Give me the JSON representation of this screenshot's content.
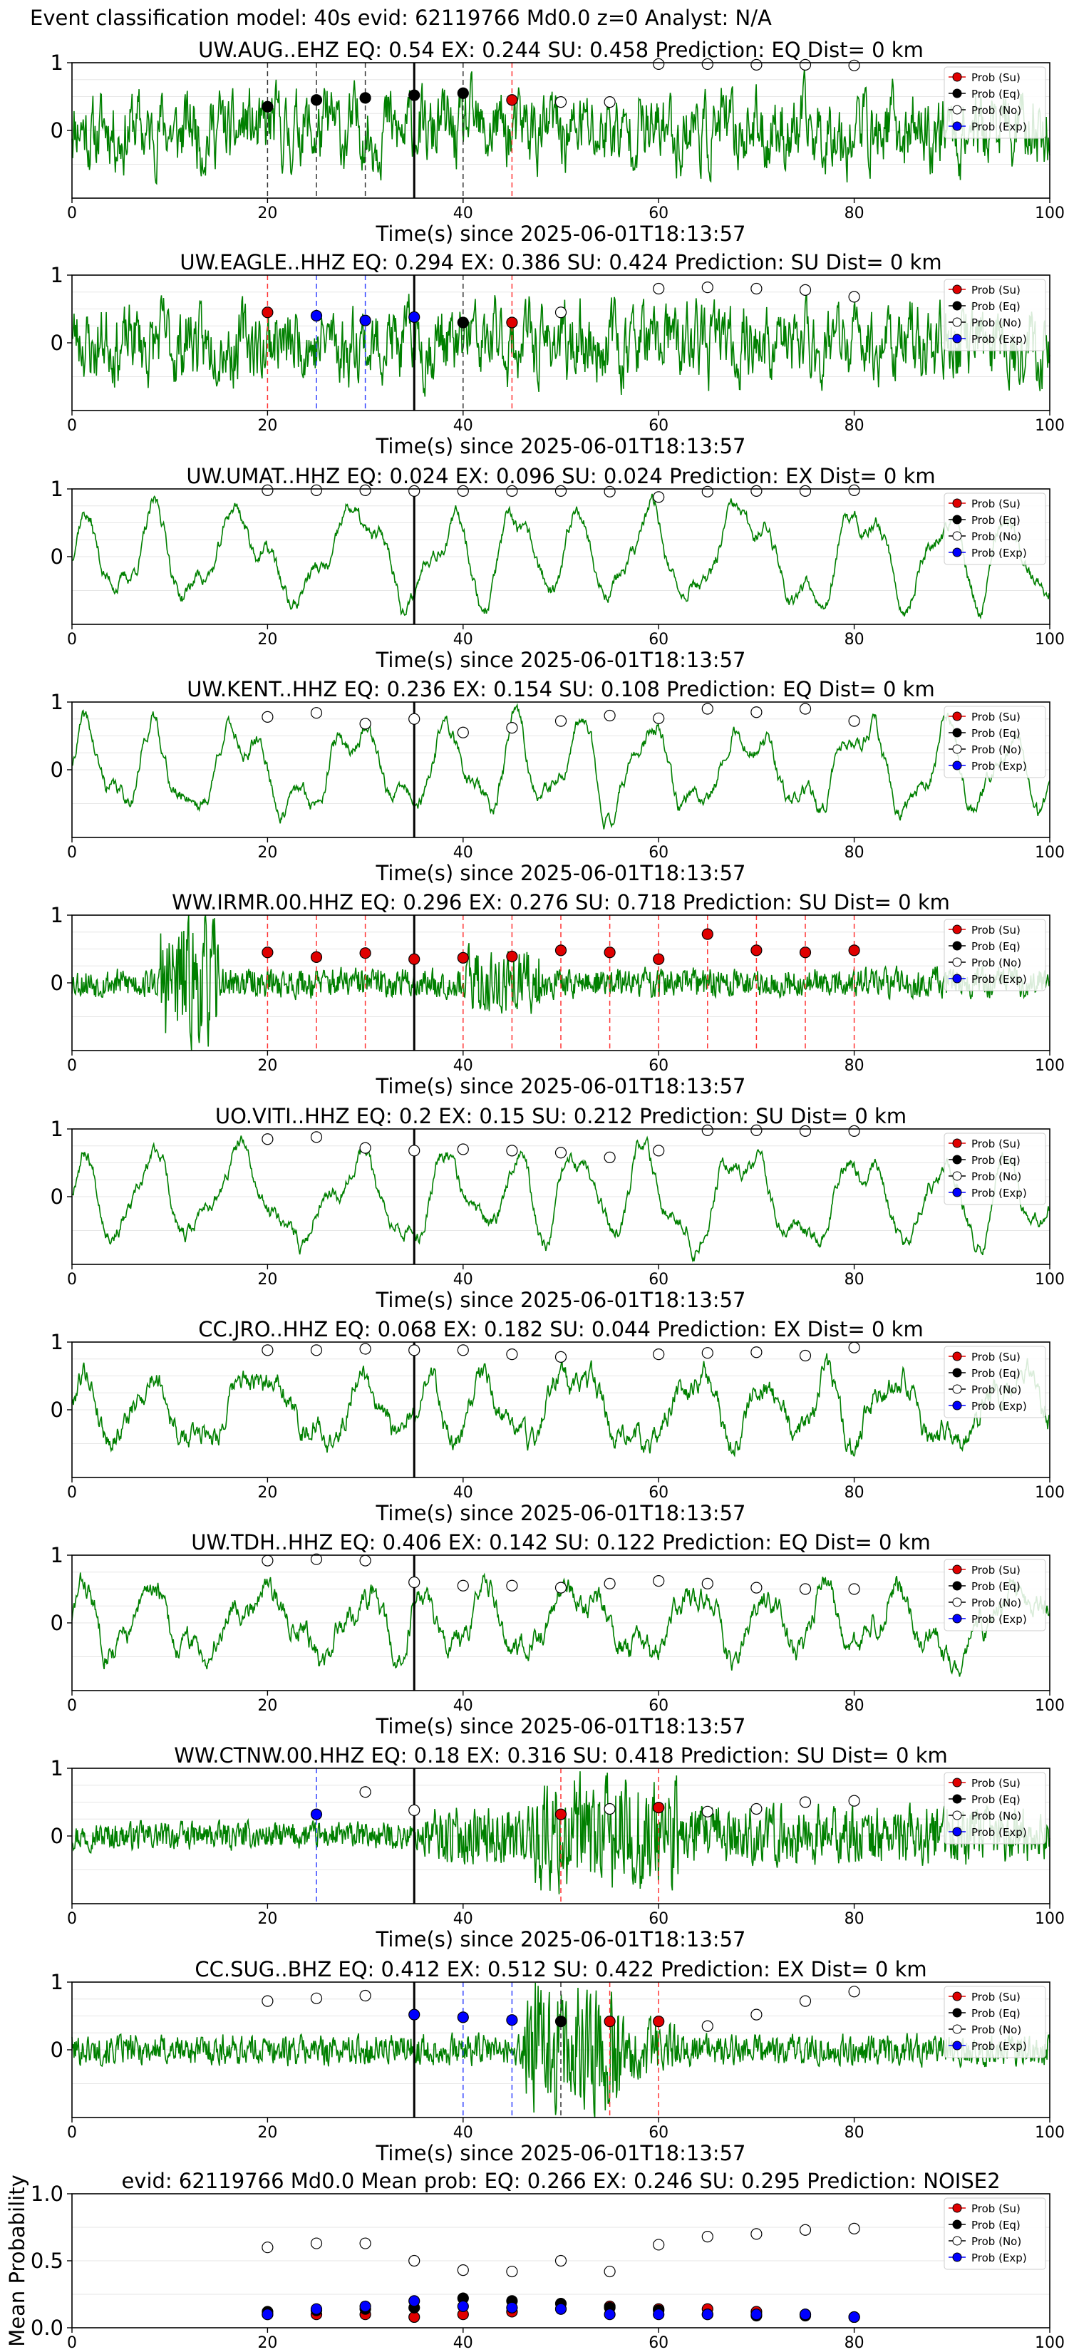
{
  "figure_title": "Event classification model: 40s evid: 62119766 Md0.0 z=0 Analyst: N/A",
  "colors": {
    "waveform": "#008000",
    "su": "#e00000",
    "eq": "#000000",
    "no": "#ffffff",
    "exp": "#0000ff",
    "pick": "#000000"
  },
  "legend_labels": [
    "Prob (Su)",
    "Prob (Eq)",
    "Prob (No)",
    "Prob (Exp)"
  ],
  "chart_data": [
    {
      "type": "line",
      "title": "UW.AUG..EHZ    EQ: 0.54   EX: 0.244   SU: 0.458    Prediction: EQ    Dist= 0 km",
      "xlabel": "Time(s) since 2025-06-01T18:13:57",
      "xlim": [
        0,
        100
      ],
      "ylim": [
        -1,
        1
      ],
      "xticks": [
        0,
        20,
        40,
        60,
        80,
        100
      ],
      "yticks": [
        1,
        0
      ],
      "legend": "right",
      "grid": true,
      "pick_time": 35,
      "seed": 11,
      "style": "noisy",
      "windows": [
        {
          "t": 20,
          "class": "eq",
          "p": 0.35
        },
        {
          "t": 25,
          "class": "eq",
          "p": 0.45
        },
        {
          "t": 30,
          "class": "eq",
          "p": 0.48
        },
        {
          "t": 35,
          "class": "eq",
          "p": 0.52
        },
        {
          "t": 40,
          "class": "eq",
          "p": 0.55
        },
        {
          "t": 45,
          "class": "su",
          "p": 0.45
        },
        {
          "t": 50,
          "class": "no",
          "p": 0.42
        },
        {
          "t": 55,
          "class": "no",
          "p": 0.42
        },
        {
          "t": 60,
          "class": "no",
          "p": 0.98
        },
        {
          "t": 65,
          "class": "no",
          "p": 0.98
        },
        {
          "t": 70,
          "class": "no",
          "p": 0.97
        },
        {
          "t": 75,
          "class": "no",
          "p": 0.97
        },
        {
          "t": 80,
          "class": "no",
          "p": 0.96
        }
      ]
    },
    {
      "type": "line",
      "title": "UW.EAGLE..HHZ   EQ: 0.294   EX: 0.386   SU: 0.424    Prediction: SU    Dist= 0 km",
      "xlabel": "Time(s) since 2025-06-01T18:13:57",
      "xlim": [
        0,
        100
      ],
      "ylim": [
        -1,
        1
      ],
      "xticks": [
        0,
        20,
        40,
        60,
        80,
        100
      ],
      "yticks": [
        1,
        0
      ],
      "legend": "right",
      "grid": true,
      "pick_time": 35,
      "seed": 23,
      "style": "noisy",
      "windows": [
        {
          "t": 20,
          "class": "su",
          "p": 0.45
        },
        {
          "t": 25,
          "class": "exp",
          "p": 0.4
        },
        {
          "t": 30,
          "class": "exp",
          "p": 0.33
        },
        {
          "t": 35,
          "class": "exp",
          "p": 0.38
        },
        {
          "t": 40,
          "class": "eq",
          "p": 0.3
        },
        {
          "t": 45,
          "class": "su",
          "p": 0.3
        },
        {
          "t": 50,
          "class": "no",
          "p": 0.45
        },
        {
          "t": 60,
          "class": "no",
          "p": 0.8
        },
        {
          "t": 65,
          "class": "no",
          "p": 0.82
        },
        {
          "t": 70,
          "class": "no",
          "p": 0.8
        },
        {
          "t": 75,
          "class": "no",
          "p": 0.78
        },
        {
          "t": 80,
          "class": "no",
          "p": 0.68
        }
      ]
    },
    {
      "type": "line",
      "title": "UW.UMAT..HHZ   EQ: 0.024   EX: 0.096   SU: 0.024    Prediction: EX     Dist= 0 km",
      "xlabel": "Time(s) since 2025-06-01T18:13:57",
      "xlim": [
        0,
        100
      ],
      "ylim": [
        -1,
        1
      ],
      "xticks": [
        0,
        20,
        40,
        60,
        80,
        100
      ],
      "yticks": [
        1,
        0
      ],
      "legend": "right",
      "grid": true,
      "pick_time": 35,
      "seed": 37,
      "style": "wave",
      "windows": [
        {
          "t": 20,
          "class": "no",
          "p": 0.98
        },
        {
          "t": 25,
          "class": "no",
          "p": 0.98
        },
        {
          "t": 30,
          "class": "no",
          "p": 0.98
        },
        {
          "t": 35,
          "class": "no",
          "p": 0.97
        },
        {
          "t": 40,
          "class": "no",
          "p": 0.97
        },
        {
          "t": 45,
          "class": "no",
          "p": 0.97
        },
        {
          "t": 50,
          "class": "no",
          "p": 0.97
        },
        {
          "t": 55,
          "class": "no",
          "p": 0.96
        },
        {
          "t": 60,
          "class": "no",
          "p": 0.88
        },
        {
          "t": 65,
          "class": "no",
          "p": 0.96
        },
        {
          "t": 70,
          "class": "no",
          "p": 0.97
        },
        {
          "t": 75,
          "class": "no",
          "p": 0.97
        },
        {
          "t": 80,
          "class": "no",
          "p": 0.98
        }
      ]
    },
    {
      "type": "line",
      "title": "UW.KENT..HHZ   EQ: 0.236   EX: 0.154   SU: 0.108    Prediction: EQ    Dist= 0 km",
      "xlabel": "Time(s) since 2025-06-01T18:13:57",
      "xlim": [
        0,
        100
      ],
      "ylim": [
        -1,
        1
      ],
      "xticks": [
        0,
        20,
        40,
        60,
        80,
        100
      ],
      "yticks": [
        1,
        0
      ],
      "legend": "right",
      "grid": true,
      "pick_time": 35,
      "seed": 41,
      "style": "wave",
      "windows": [
        {
          "t": 20,
          "class": "no",
          "p": 0.78
        },
        {
          "t": 25,
          "class": "no",
          "p": 0.84
        },
        {
          "t": 30,
          "class": "no",
          "p": 0.68
        },
        {
          "t": 35,
          "class": "no",
          "p": 0.75
        },
        {
          "t": 40,
          "class": "no",
          "p": 0.55
        },
        {
          "t": 45,
          "class": "no",
          "p": 0.62
        },
        {
          "t": 50,
          "class": "no",
          "p": 0.72
        },
        {
          "t": 55,
          "class": "no",
          "p": 0.8
        },
        {
          "t": 60,
          "class": "no",
          "p": 0.76
        },
        {
          "t": 65,
          "class": "no",
          "p": 0.9
        },
        {
          "t": 70,
          "class": "no",
          "p": 0.85
        },
        {
          "t": 75,
          "class": "no",
          "p": 0.9
        },
        {
          "t": 80,
          "class": "no",
          "p": 0.72
        }
      ]
    },
    {
      "type": "line",
      "title": "WW.IRMR.00.HHZ   EQ: 0.296   EX: 0.276   SU: 0.718    Prediction: SU    Dist= 0 km",
      "xlabel": "Time(s) since 2025-06-01T18:13:57",
      "xlim": [
        0,
        100
      ],
      "ylim": [
        -1,
        1
      ],
      "xticks": [
        0,
        20,
        40,
        60,
        80,
        100
      ],
      "yticks": [
        1,
        0
      ],
      "legend": "right",
      "grid": true,
      "pick_time": 35,
      "seed": 53,
      "style": "quiet_burst",
      "windows": [
        {
          "t": 20,
          "class": "su",
          "p": 0.45
        },
        {
          "t": 25,
          "class": "su",
          "p": 0.38
        },
        {
          "t": 30,
          "class": "su",
          "p": 0.44
        },
        {
          "t": 35,
          "class": "su",
          "p": 0.35
        },
        {
          "t": 40,
          "class": "su",
          "p": 0.37
        },
        {
          "t": 45,
          "class": "su",
          "p": 0.39
        },
        {
          "t": 50,
          "class": "su",
          "p": 0.48
        },
        {
          "t": 55,
          "class": "su",
          "p": 0.45
        },
        {
          "t": 60,
          "class": "su",
          "p": 0.35
        },
        {
          "t": 65,
          "class": "su",
          "p": 0.72
        },
        {
          "t": 70,
          "class": "su",
          "p": 0.48
        },
        {
          "t": 75,
          "class": "su",
          "p": 0.45
        },
        {
          "t": 80,
          "class": "su",
          "p": 0.48
        }
      ]
    },
    {
      "type": "line",
      "title": "UO.VITI..HHZ   EQ: 0.2   EX: 0.15   SU: 0.212    Prediction: SU    Dist= 0 km",
      "xlabel": "Time(s) since 2025-06-01T18:13:57",
      "xlim": [
        0,
        100
      ],
      "ylim": [
        -1,
        1
      ],
      "xticks": [
        0,
        20,
        40,
        60,
        80,
        100
      ],
      "yticks": [
        1,
        0
      ],
      "legend": "right",
      "grid": true,
      "pick_time": 35,
      "seed": 67,
      "style": "wave",
      "windows": [
        {
          "t": 20,
          "class": "no",
          "p": 0.85
        },
        {
          "t": 25,
          "class": "no",
          "p": 0.88
        },
        {
          "t": 30,
          "class": "no",
          "p": 0.72
        },
        {
          "t": 35,
          "class": "no",
          "p": 0.68
        },
        {
          "t": 40,
          "class": "no",
          "p": 0.7
        },
        {
          "t": 45,
          "class": "no",
          "p": 0.68
        },
        {
          "t": 50,
          "class": "no",
          "p": 0.65
        },
        {
          "t": 55,
          "class": "no",
          "p": 0.58
        },
        {
          "t": 60,
          "class": "no",
          "p": 0.68
        },
        {
          "t": 65,
          "class": "no",
          "p": 0.98
        },
        {
          "t": 70,
          "class": "no",
          "p": 0.98
        },
        {
          "t": 75,
          "class": "no",
          "p": 0.97
        },
        {
          "t": 80,
          "class": "no",
          "p": 0.97
        }
      ]
    },
    {
      "type": "line",
      "title": "CC.JRO..HHZ   EQ: 0.068   EX: 0.182   SU: 0.044    Prediction: EX    Dist= 0 km",
      "xlabel": "Time(s) since 2025-06-01T18:13:57",
      "xlim": [
        0,
        100
      ],
      "ylim": [
        -1,
        1
      ],
      "xticks": [
        0,
        20,
        40,
        60,
        80,
        100
      ],
      "yticks": [
        1,
        0
      ],
      "legend": "right",
      "grid": true,
      "pick_time": 35,
      "seed": 79,
      "style": "wave_noisy",
      "windows": [
        {
          "t": 20,
          "class": "no",
          "p": 0.88
        },
        {
          "t": 25,
          "class": "no",
          "p": 0.88
        },
        {
          "t": 30,
          "class": "no",
          "p": 0.9
        },
        {
          "t": 35,
          "class": "no",
          "p": 0.88
        },
        {
          "t": 40,
          "class": "no",
          "p": 0.88
        },
        {
          "t": 45,
          "class": "no",
          "p": 0.82
        },
        {
          "t": 50,
          "class": "no",
          "p": 0.78
        },
        {
          "t": 60,
          "class": "no",
          "p": 0.82
        },
        {
          "t": 65,
          "class": "no",
          "p": 0.84
        },
        {
          "t": 70,
          "class": "no",
          "p": 0.85
        },
        {
          "t": 75,
          "class": "no",
          "p": 0.8
        },
        {
          "t": 80,
          "class": "no",
          "p": 0.92
        }
      ]
    },
    {
      "type": "line",
      "title": "UW.TDH..HHZ   EQ: 0.406   EX: 0.142   SU: 0.122    Prediction: EQ    Dist= 0 km",
      "xlabel": "Time(s) since 2025-06-01T18:13:57",
      "xlim": [
        0,
        100
      ],
      "ylim": [
        -1,
        1
      ],
      "xticks": [
        0,
        20,
        40,
        60,
        80,
        100
      ],
      "yticks": [
        1,
        0
      ],
      "legend": "right",
      "grid": true,
      "pick_time": 35,
      "seed": 83,
      "style": "wave_noisy",
      "windows": [
        {
          "t": 20,
          "class": "no",
          "p": 0.92
        },
        {
          "t": 25,
          "class": "no",
          "p": 0.94
        },
        {
          "t": 30,
          "class": "no",
          "p": 0.92
        },
        {
          "t": 35,
          "class": "no",
          "p": 0.6
        },
        {
          "t": 40,
          "class": "no",
          "p": 0.55
        },
        {
          "t": 45,
          "class": "no",
          "p": 0.55
        },
        {
          "t": 50,
          "class": "no",
          "p": 0.52
        },
        {
          "t": 55,
          "class": "no",
          "p": 0.58
        },
        {
          "t": 60,
          "class": "no",
          "p": 0.62
        },
        {
          "t": 65,
          "class": "no",
          "p": 0.58
        },
        {
          "t": 70,
          "class": "no",
          "p": 0.52
        },
        {
          "t": 75,
          "class": "no",
          "p": 0.5
        },
        {
          "t": 80,
          "class": "no",
          "p": 0.5
        }
      ]
    },
    {
      "type": "line",
      "title": "WW.CTNW.00.HHZ   EQ: 0.18   EX: 0.316   SU: 0.418    Prediction: SU    Dist= 0 km",
      "xlabel": "Time(s) since 2025-06-01T18:13:57",
      "xlim": [
        0,
        100
      ],
      "ylim": [
        -1,
        1
      ],
      "xticks": [
        0,
        20,
        40,
        60,
        80,
        100
      ],
      "yticks": [
        1,
        0
      ],
      "legend": "right",
      "grid": true,
      "pick_time": 35,
      "seed": 97,
      "style": "quiet_burst_late",
      "windows": [
        {
          "t": 25,
          "class": "exp",
          "p": 0.32
        },
        {
          "t": 30,
          "class": "no",
          "p": 0.65
        },
        {
          "t": 35,
          "class": "no",
          "p": 0.38
        },
        {
          "t": 50,
          "class": "su",
          "p": 0.32
        },
        {
          "t": 55,
          "class": "no",
          "p": 0.4
        },
        {
          "t": 60,
          "class": "su",
          "p": 0.42
        },
        {
          "t": 65,
          "class": "no",
          "p": 0.36
        },
        {
          "t": 70,
          "class": "no",
          "p": 0.4
        },
        {
          "t": 75,
          "class": "no",
          "p": 0.5
        },
        {
          "t": 80,
          "class": "no",
          "p": 0.52
        }
      ]
    },
    {
      "type": "line",
      "title": "CC.SUG..BHZ   EQ: 0.412   EX: 0.512   SU: 0.422    Prediction: EX    Dist= 0 km",
      "xlabel": "Time(s) since 2025-06-01T18:13:57",
      "xlim": [
        0,
        100
      ],
      "ylim": [
        -1,
        1
      ],
      "xticks": [
        0,
        20,
        40,
        60,
        80,
        100
      ],
      "yticks": [
        1,
        0
      ],
      "legend": "right",
      "grid": true,
      "pick_time": 35,
      "seed": 101,
      "style": "quiet_burst_mid",
      "windows": [
        {
          "t": 20,
          "class": "no",
          "p": 0.72
        },
        {
          "t": 25,
          "class": "no",
          "p": 0.76
        },
        {
          "t": 30,
          "class": "no",
          "p": 0.8
        },
        {
          "t": 35,
          "class": "exp",
          "p": 0.52
        },
        {
          "t": 40,
          "class": "exp",
          "p": 0.48
        },
        {
          "t": 45,
          "class": "exp",
          "p": 0.44
        },
        {
          "t": 50,
          "class": "eq",
          "p": 0.42
        },
        {
          "t": 55,
          "class": "su",
          "p": 0.42
        },
        {
          "t": 60,
          "class": "su",
          "p": 0.42
        },
        {
          "t": 65,
          "class": "no",
          "p": 0.35
        },
        {
          "t": 70,
          "class": "no",
          "p": 0.52
        },
        {
          "t": 75,
          "class": "no",
          "p": 0.72
        },
        {
          "t": 80,
          "class": "no",
          "p": 0.86
        }
      ]
    },
    {
      "type": "scatter",
      "title": "evid: 62119766   Md0.0   Mean prob:   EQ: 0.266   EX: 0.246   SU: 0.295   Prediction: NOISE2",
      "ylabel": "Mean Probability",
      "xlim": [
        0,
        100
      ],
      "ylim": [
        0,
        1
      ],
      "xticks": [
        0,
        20,
        40,
        60,
        80,
        100
      ],
      "yticks": [
        0.0,
        0.5,
        1.0
      ],
      "legend": "right",
      "grid": true,
      "x": [
        20,
        25,
        30,
        35,
        40,
        45,
        50,
        55,
        60,
        65,
        70,
        75,
        80
      ],
      "series": [
        {
          "name": "Prob (Su)",
          "values": [
            0.1,
            0.1,
            0.1,
            0.08,
            0.1,
            0.12,
            0.14,
            0.16,
            0.14,
            0.14,
            0.12,
            0.1,
            0.08
          ]
        },
        {
          "name": "Prob (Eq)",
          "values": [
            0.12,
            0.13,
            0.14,
            0.15,
            0.22,
            0.2,
            0.18,
            0.15,
            0.13,
            0.1,
            0.09,
            0.09,
            0.08
          ]
        },
        {
          "name": "Prob (No)",
          "values": [
            0.6,
            0.63,
            0.63,
            0.5,
            0.43,
            0.42,
            0.5,
            0.42,
            0.62,
            0.68,
            0.7,
            0.73,
            0.74
          ]
        },
        {
          "name": "Prob (Exp)",
          "values": [
            0.1,
            0.14,
            0.16,
            0.2,
            0.16,
            0.15,
            0.14,
            0.1,
            0.1,
            0.1,
            0.1,
            0.1,
            0.08
          ]
        }
      ]
    }
  ]
}
